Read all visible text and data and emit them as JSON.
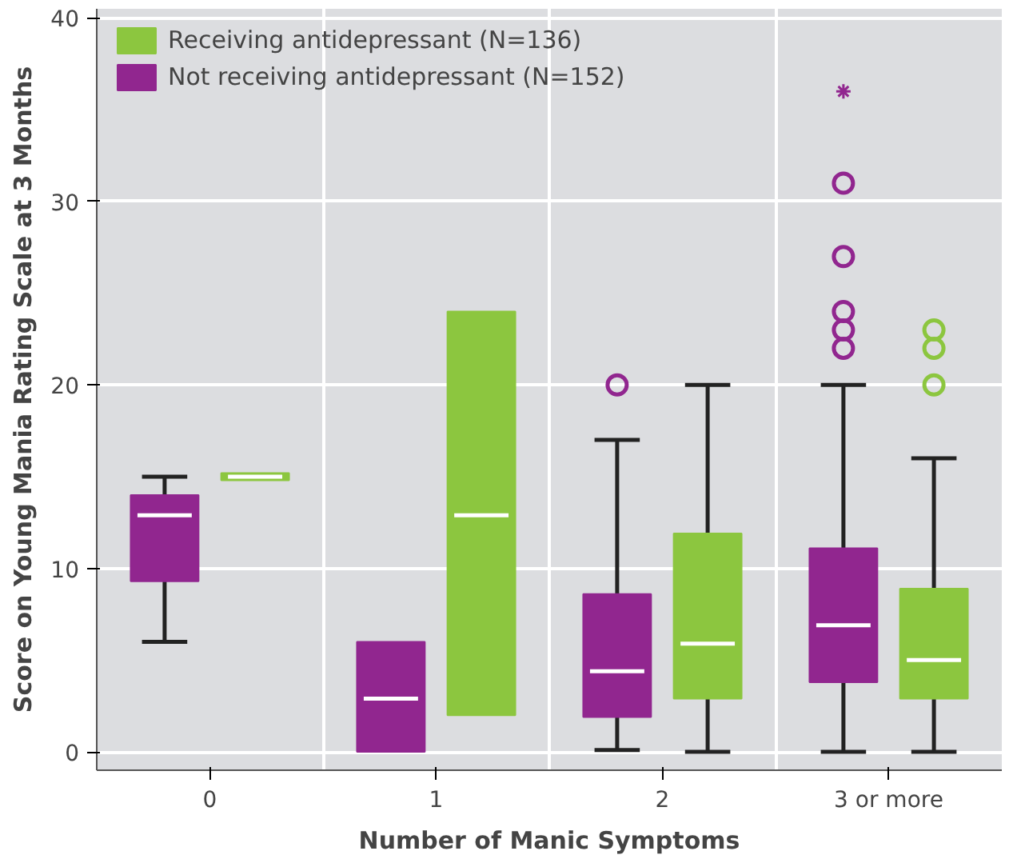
{
  "chart_data": {
    "type": "box",
    "xlabel": "Number of Manic Symptoms",
    "ylabel": "Score on Young Mania Rating Scale at 3 Months",
    "categories": [
      "0",
      "1",
      "2",
      "3 or more"
    ],
    "ylim": [
      -1,
      40.5
    ],
    "yticks": [
      0,
      10,
      20,
      30,
      40
    ],
    "grid": true,
    "legend": "top left",
    "series": [
      {
        "name": "Not receiving antidepressant (N=152)",
        "color": "#91268f",
        "boxes": [
          {
            "low": 6,
            "q1": 9.3,
            "median": 12.9,
            "q3": 14,
            "high": 15
          },
          {
            "low": 0,
            "q1": 0,
            "median": 2.9,
            "q3": 6,
            "high": 6
          },
          {
            "low": 0.1,
            "q1": 1.9,
            "median": 4.4,
            "q3": 8.6,
            "high": 17,
            "outliers": [
              20
            ]
          },
          {
            "low": 0,
            "q1": 3.8,
            "median": 6.9,
            "q3": 11.1,
            "high": 20,
            "outliers": [
              22,
              23,
              24,
              27,
              31,
              36
            ]
          }
        ]
      },
      {
        "name": "Receiving antidepressant (N=136)",
        "color": "#8cc63f",
        "boxes": [
          {
            "low": 14.8,
            "q1": 14.8,
            "median": 15,
            "q3": 15.2,
            "high": 15.2
          },
          {
            "low": 2,
            "q1": 2,
            "median": 12.9,
            "q3": 24,
            "high": 24
          },
          {
            "low": 0,
            "q1": 2.9,
            "median": 5.9,
            "q3": 11.9,
            "high": 20
          },
          {
            "low": 0,
            "q1": 2.9,
            "median": 5,
            "q3": 8.9,
            "high": 16,
            "outliers": [
              20,
              22,
              23
            ]
          }
        ]
      }
    ]
  }
}
